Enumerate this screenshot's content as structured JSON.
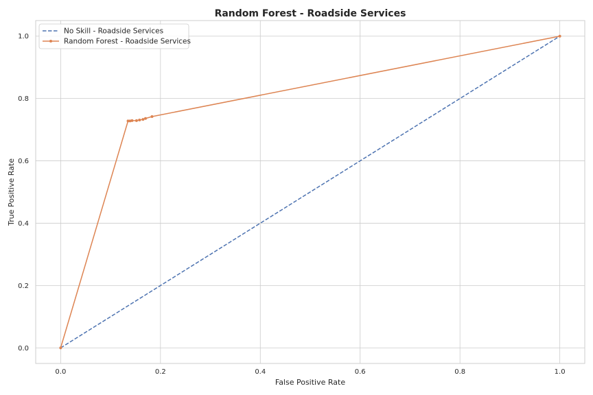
{
  "chart_data": {
    "type": "line",
    "title": "Random Forest - Roadside Services",
    "xlabel": "False Positive Rate",
    "ylabel": "True Positive Rate",
    "xlim": [
      -0.05,
      1.05
    ],
    "ylim": [
      -0.05,
      1.05
    ],
    "xticks": [
      "0.0",
      "0.2",
      "0.4",
      "0.6",
      "0.8",
      "1.0"
    ],
    "yticks": [
      "0.0",
      "0.2",
      "0.4",
      "0.6",
      "0.8",
      "1.0"
    ],
    "grid": true,
    "legend_position": "top-left",
    "series": [
      {
        "name": "No Skill - Roadside Services",
        "style": "dashed",
        "marker": "none",
        "color": "#4c72b0",
        "x": [
          0.0,
          1.0
        ],
        "y": [
          0.0,
          1.0
        ]
      },
      {
        "name": "Random Forest - Roadside Services",
        "style": "solid",
        "marker": "dot",
        "color": "#dd8452",
        "x": [
          0.0,
          0.135,
          0.139,
          0.143,
          0.152,
          0.158,
          0.165,
          0.17,
          0.183,
          1.0
        ],
        "y": [
          0.0,
          0.728,
          0.728,
          0.729,
          0.729,
          0.731,
          0.733,
          0.736,
          0.742,
          1.0
        ]
      }
    ]
  }
}
